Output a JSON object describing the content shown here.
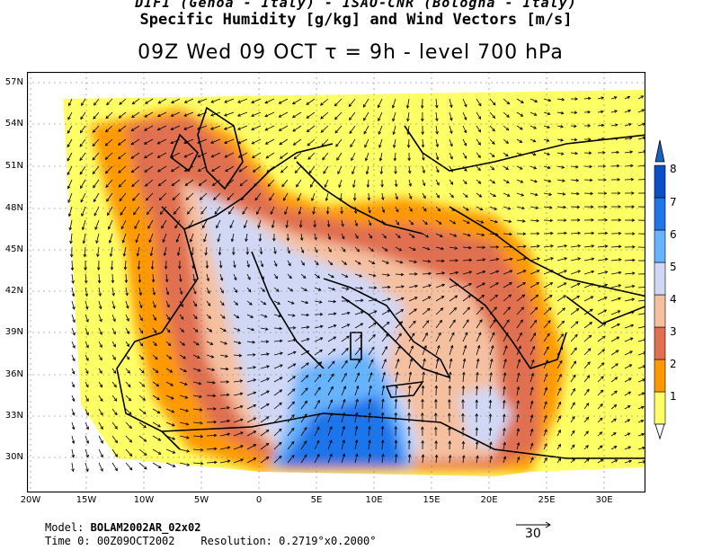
{
  "header": {
    "line1": "DIFI (Genoa - Italy)  -  ISAO-CNR (Bologna - Italy)",
    "line2": "Specific Humidity [g/kg] and Wind Vectors [m/s]",
    "line3": "09Z Wed 09 OCT  τ = 9h  -  level 700 hPa"
  },
  "axes": {
    "lat_labels": [
      "57N",
      "54N",
      "51N",
      "48N",
      "45N",
      "42N",
      "39N",
      "36N",
      "33N",
      "30N"
    ],
    "lon_labels": [
      "20W",
      "15W",
      "10W",
      "5W",
      "0",
      "5E",
      "10E",
      "15E",
      "20E",
      "25E",
      "30E"
    ]
  },
  "legend": {
    "labels": [
      "1",
      "2",
      "3",
      "4",
      "5",
      "6",
      "7",
      "8"
    ],
    "colors": [
      "#ffff66",
      "#ff9900",
      "#e07050",
      "#f5c0a0",
      "#d0d8f5",
      "#66b3ff",
      "#1f75ea",
      "#0a4fc8"
    ],
    "unit": "g/kg"
  },
  "reference_vector": {
    "value": "30"
  },
  "footer": {
    "model_label": "Model:",
    "model_value": "BOLAM2002AR_02x02",
    "time_label": "Time 0:",
    "time_value": "00Z09OCT2002",
    "res_label": "Resolution:",
    "res_value": "0.2719°x0.2000°"
  }
}
